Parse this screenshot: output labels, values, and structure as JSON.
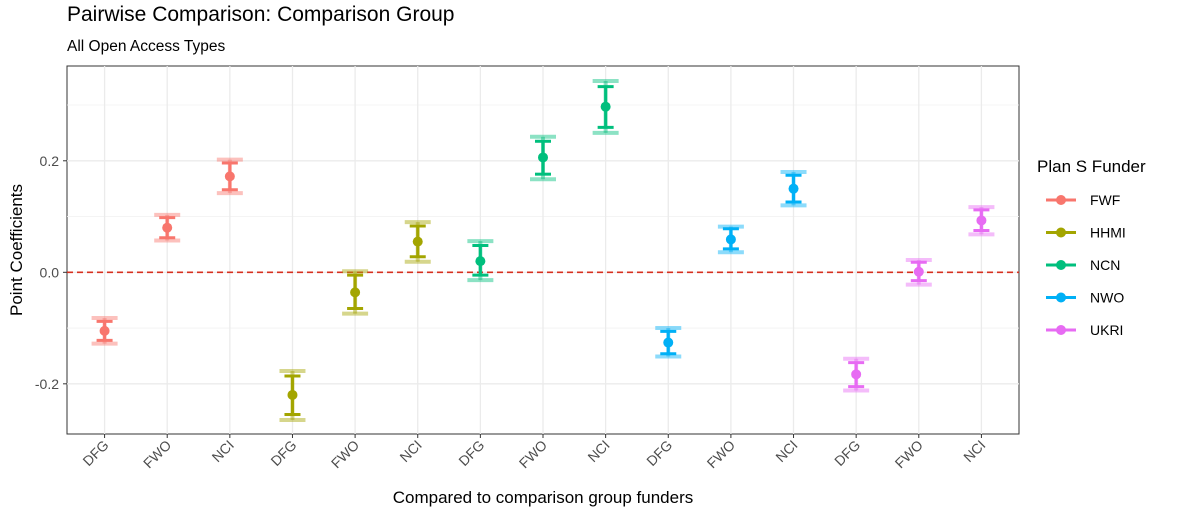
{
  "chart_data": {
    "type": "errorbar",
    "title": "Pairwise Comparison: Comparison Group",
    "subtitle": "All Open Access Types",
    "xlabel": "Compared to comparison group funders",
    "ylabel": "Point Coefficients",
    "ylim": [
      -0.29,
      0.37
    ],
    "yticks": [
      -0.2,
      0.0,
      0.2
    ],
    "ytick_labels": [
      "-0.2",
      "0.0",
      "0.2"
    ],
    "reference_line": {
      "y": 0.0,
      "style": "dashed",
      "color": "#d7301f"
    },
    "grid": true,
    "legend": {
      "title": "Plan S Funder",
      "position": "right"
    },
    "categories": [
      "DFG",
      "FWO",
      "NCI",
      "DFG",
      "FWO",
      "NCI",
      "DFG",
      "FWO",
      "NCI",
      "DFG",
      "FWO",
      "NCI",
      "DFG",
      "FWO",
      "NCI"
    ],
    "series": [
      {
        "name": "FWF",
        "color": "#f8766d",
        "points": [
          {
            "x": 1,
            "y": -0.105,
            "ci_inner": [
              -0.122,
              -0.088
            ],
            "ci_outer": [
              -0.128,
              -0.082
            ]
          },
          {
            "x": 2,
            "y": 0.08,
            "ci_inner": [
              0.062,
              0.098
            ],
            "ci_outer": [
              0.057,
              0.103
            ]
          },
          {
            "x": 3,
            "y": 0.172,
            "ci_inner": [
              0.148,
              0.196
            ],
            "ci_outer": [
              0.142,
              0.202
            ]
          }
        ]
      },
      {
        "name": "HHMI",
        "color": "#a3a500",
        "points": [
          {
            "x": 4,
            "y": -0.22,
            "ci_inner": [
              -0.255,
              -0.186
            ],
            "ci_outer": [
              -0.265,
              -0.177
            ]
          },
          {
            "x": 5,
            "y": -0.036,
            "ci_inner": [
              -0.065,
              -0.005
            ],
            "ci_outer": [
              -0.074,
              0.002
            ]
          },
          {
            "x": 6,
            "y": 0.055,
            "ci_inner": [
              0.028,
              0.083
            ],
            "ci_outer": [
              0.019,
              0.09
            ]
          }
        ]
      },
      {
        "name": "NCN",
        "color": "#00bf7d",
        "points": [
          {
            "x": 7,
            "y": 0.02,
            "ci_inner": [
              -0.005,
              0.048
            ],
            "ci_outer": [
              -0.014,
              0.056
            ]
          },
          {
            "x": 8,
            "y": 0.206,
            "ci_inner": [
              0.176,
              0.235
            ],
            "ci_outer": [
              0.167,
              0.243
            ]
          },
          {
            "x": 9,
            "y": 0.297,
            "ci_inner": [
              0.26,
              0.333
            ],
            "ci_outer": [
              0.25,
              0.343
            ]
          }
        ]
      },
      {
        "name": "NWO",
        "color": "#00b0f6",
        "points": [
          {
            "x": 10,
            "y": -0.126,
            "ci_inner": [
              -0.146,
              -0.106
            ],
            "ci_outer": [
              -0.151,
              -0.1
            ]
          },
          {
            "x": 11,
            "y": 0.059,
            "ci_inner": [
              0.042,
              0.078
            ],
            "ci_outer": [
              0.036,
              0.082
            ]
          },
          {
            "x": 12,
            "y": 0.15,
            "ci_inner": [
              0.126,
              0.174
            ],
            "ci_outer": [
              0.12,
              0.18
            ]
          }
        ]
      },
      {
        "name": "UKRI",
        "color": "#e76bf3",
        "points": [
          {
            "x": 13,
            "y": -0.183,
            "ci_inner": [
              -0.205,
              -0.162
            ],
            "ci_outer": [
              -0.212,
              -0.155
            ]
          },
          {
            "x": 14,
            "y": 0.001,
            "ci_inner": [
              -0.015,
              0.018
            ],
            "ci_outer": [
              -0.022,
              0.022
            ]
          },
          {
            "x": 15,
            "y": 0.093,
            "ci_inner": [
              0.075,
              0.112
            ],
            "ci_outer": [
              0.068,
              0.117
            ]
          }
        ]
      }
    ]
  }
}
